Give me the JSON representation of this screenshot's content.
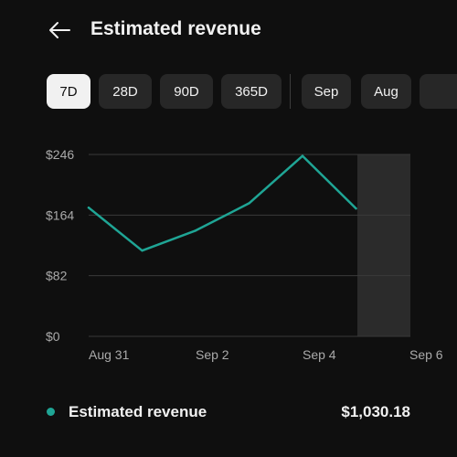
{
  "header": {
    "back_icon": "arrow-left-icon",
    "title": "Estimated revenue"
  },
  "period_chips": [
    {
      "label": "7D",
      "selected": true
    },
    {
      "label": "28D",
      "selected": false
    },
    {
      "label": "90D",
      "selected": false
    },
    {
      "label": "365D",
      "selected": false
    },
    {
      "label": "Sep",
      "selected": false
    },
    {
      "label": "Aug",
      "selected": false
    },
    {
      "label": "",
      "selected": false
    }
  ],
  "colors": {
    "background": "#0f0f0f",
    "series": "#1fa595",
    "chip": "#272727",
    "chip_selected": "#f1f1f1",
    "grid": "#3a3a3a",
    "axis_text": "#aaaaaa",
    "highlight": "#2b2b2b"
  },
  "chart_data": {
    "type": "line",
    "x": [
      "Aug 31",
      "Sep 1",
      "Sep 2",
      "Sep 3",
      "Sep 4",
      "Sep 5"
    ],
    "x_tick_labels": [
      "Aug 31",
      "Sep 2",
      "Sep 4",
      "Sep 6"
    ],
    "series": [
      {
        "name": "Estimated revenue",
        "values": [
          174,
          116,
          143,
          180,
          244,
          173
        ]
      }
    ],
    "y_ticks": [
      "$246",
      "$164",
      "$82",
      "$0"
    ],
    "ylim": [
      0,
      246
    ],
    "grid": true,
    "highlight_last_period": true
  },
  "legend": {
    "label": "Estimated revenue",
    "total": "$1,030.18"
  }
}
